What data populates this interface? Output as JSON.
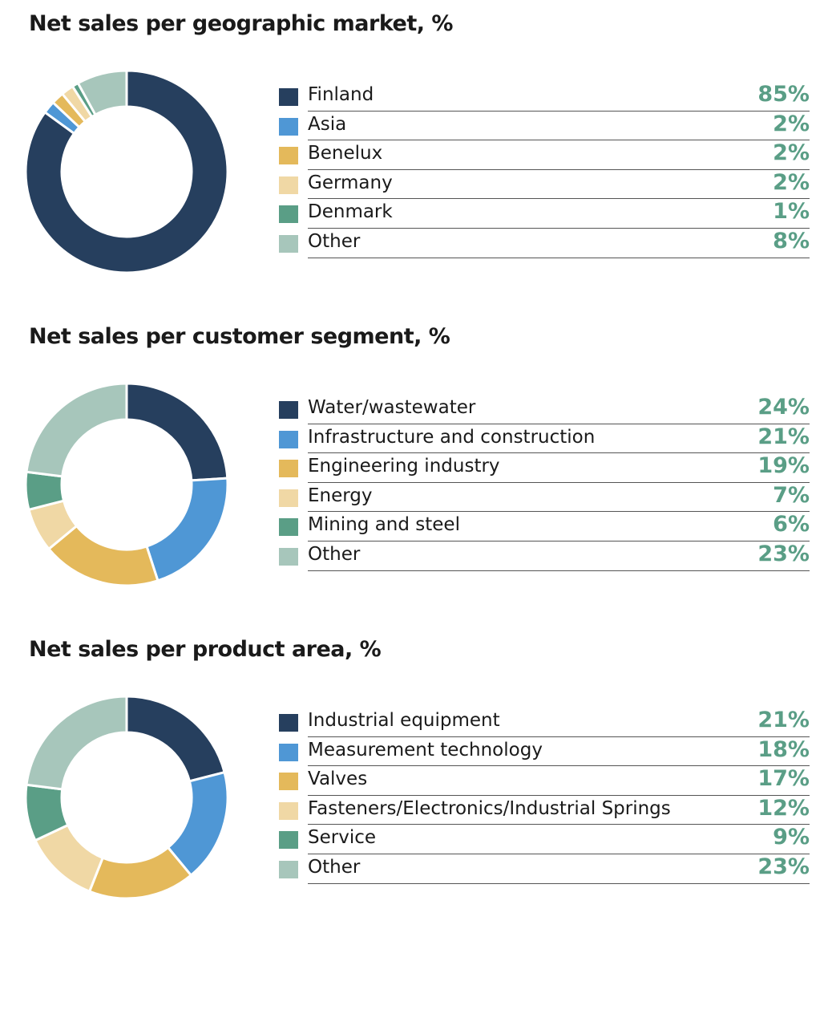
{
  "chart_data": [
    {
      "type": "pie",
      "title": "Net sales per geographic market, %",
      "categories": [
        "Finland",
        "Asia",
        "Benelux",
        "Germany",
        "Denmark",
        "Other"
      ],
      "values": [
        85,
        2,
        2,
        2,
        1,
        8
      ],
      "labels": [
        "85%",
        "2%",
        "2%",
        "2%",
        "1%",
        "8%"
      ],
      "colors": [
        "#263f5e",
        "#4f97d5",
        "#e4b95b",
        "#f0d8a5",
        "#5a9e86",
        "#a7c6bb"
      ],
      "legend": "right"
    },
    {
      "type": "pie",
      "title": "Net sales per customer segment, %",
      "categories": [
        "Water/wastewater",
        "Infrastructure and construction",
        "Engineering industry",
        "Energy",
        "Mining and steel",
        "Other"
      ],
      "values": [
        24,
        21,
        19,
        7,
        6,
        23
      ],
      "labels": [
        "24%",
        "21%",
        "19%",
        "7%",
        "6%",
        "23%"
      ],
      "colors": [
        "#263f5e",
        "#4f97d5",
        "#e4b95b",
        "#f0d8a5",
        "#5a9e86",
        "#a7c6bb"
      ],
      "legend": "right"
    },
    {
      "type": "pie",
      "title": "Net sales per product area, %",
      "categories": [
        "Industrial equipment",
        "Measurement technology",
        "Valves",
        "Fasteners/Electronics/Industrial Springs",
        "Service",
        "Other"
      ],
      "values": [
        21,
        18,
        17,
        12,
        9,
        23
      ],
      "labels": [
        "21%",
        "18%",
        "17%",
        "12%",
        "9%",
        "23%"
      ],
      "colors": [
        "#263f5e",
        "#4f97d5",
        "#e4b95b",
        "#f0d8a5",
        "#5a9e86",
        "#a7c6bb"
      ],
      "legend": "right"
    }
  ]
}
